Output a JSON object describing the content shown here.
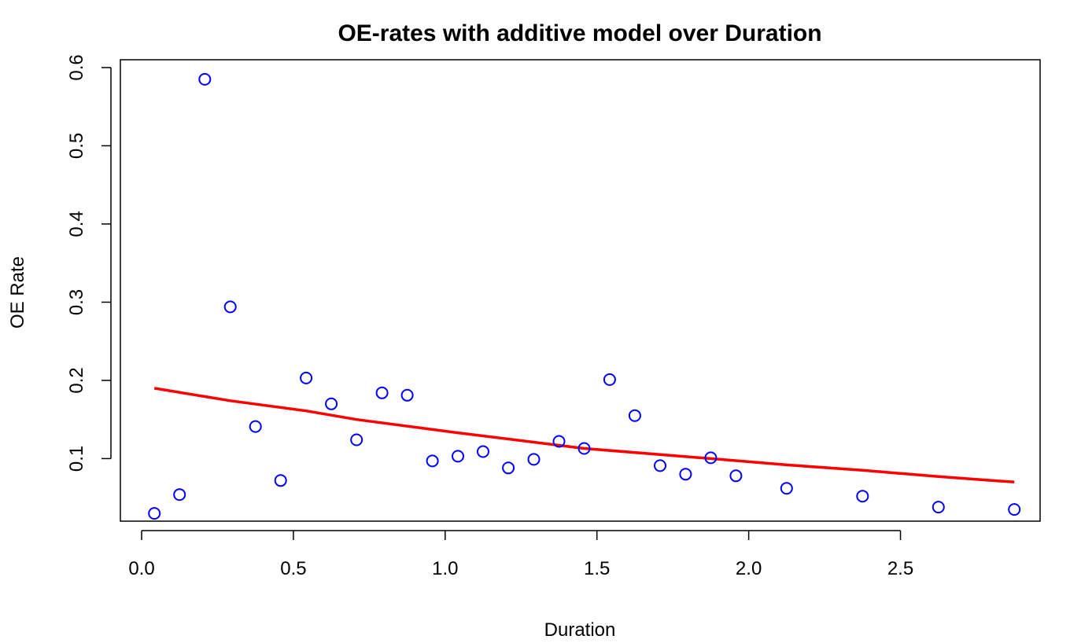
{
  "chart_data": {
    "type": "scatter",
    "title": "OE-rates with additive model over Duration",
    "xlabel": "Duration",
    "ylabel": "OE Rate",
    "xlim": [
      -0.07,
      2.96
    ],
    "ylim": [
      0.02,
      0.61
    ],
    "x_ticks": [
      0.0,
      0.5,
      1.0,
      1.5,
      2.0,
      2.5
    ],
    "x_tick_labels": [
      "0.0",
      "0.5",
      "1.0",
      "1.5",
      "2.0",
      "2.5"
    ],
    "y_ticks": [
      0.1,
      0.2,
      0.3,
      0.4,
      0.5,
      0.6
    ],
    "y_tick_labels": [
      "0.1",
      "0.2",
      "0.3",
      "0.4",
      "0.5",
      "0.6"
    ],
    "grid": false,
    "colors": {
      "points": "#0000ff",
      "line": "#ff0000",
      "axes": "#000000"
    },
    "series": [
      {
        "type": "scatter",
        "marker": "open-circle",
        "x": [
          0.042,
          0.125,
          0.208,
          0.292,
          0.375,
          0.458,
          0.542,
          0.625,
          0.708,
          0.792,
          0.875,
          0.958,
          1.042,
          1.125,
          1.208,
          1.292,
          1.375,
          1.458,
          1.542,
          1.625,
          1.708,
          1.792,
          1.875,
          1.958,
          2.125,
          2.375,
          2.625,
          2.875
        ],
        "y": [
          0.03,
          0.054,
          0.585,
          0.294,
          0.141,
          0.072,
          0.203,
          0.17,
          0.124,
          0.184,
          0.181,
          0.097,
          0.103,
          0.109,
          0.088,
          0.099,
          0.122,
          0.113,
          0.201,
          0.155,
          0.091,
          0.08,
          0.101,
          0.078,
          0.062,
          0.052,
          0.038,
          0.035
        ]
      },
      {
        "type": "line",
        "x": [
          0.042,
          0.292,
          0.542,
          0.708,
          1.042,
          1.458,
          1.875,
          2.125,
          2.375,
          2.625,
          2.875
        ],
        "y": [
          0.19,
          0.174,
          0.161,
          0.15,
          0.133,
          0.113,
          0.1,
          0.092,
          0.085,
          0.077,
          0.07
        ]
      }
    ]
  }
}
